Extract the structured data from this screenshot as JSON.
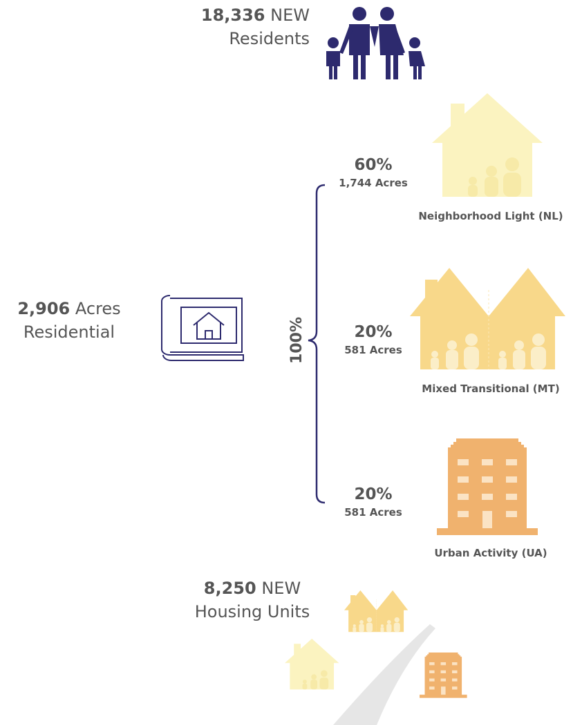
{
  "residents": {
    "number": "18,336",
    "word": "NEW",
    "label": "Residents"
  },
  "residential": {
    "number": "2,906",
    "word": "Acres",
    "label": "Residential"
  },
  "total": "100%",
  "items": [
    {
      "percent": "60%",
      "acres": "1,744 Acres",
      "label": "Neighborhood Light (NL)"
    },
    {
      "percent": "20%",
      "acres": "581 Acres",
      "label": "Mixed Transitional (MT)"
    },
    {
      "percent": "20%",
      "acres": "581 Acres",
      "label": "Urban Activity (UA)"
    }
  ],
  "housing": {
    "number": "8,250",
    "word": "NEW",
    "label": "Housing Units"
  }
}
